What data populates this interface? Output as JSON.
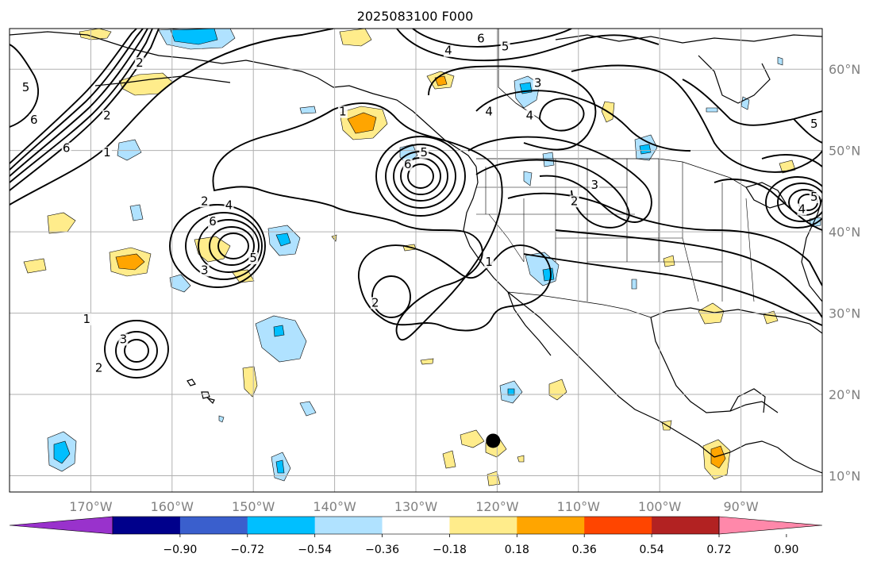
{
  "title": "2025083100 F000",
  "map": {
    "lon_range": [
      -180,
      -80
    ],
    "lat_range": [
      8,
      65
    ],
    "lon_ticks": [
      {
        "value": -170,
        "label": "170°W"
      },
      {
        "value": -160,
        "label": "160°W"
      },
      {
        "value": -150,
        "label": "150°W"
      },
      {
        "value": -140,
        "label": "140°W"
      },
      {
        "value": -130,
        "label": "130°W"
      },
      {
        "value": -120,
        "label": "120°W"
      },
      {
        "value": -110,
        "label": "110°W"
      },
      {
        "value": -100,
        "label": "100°W"
      },
      {
        "value": -90,
        "label": "90°W"
      }
    ],
    "lat_ticks": [
      {
        "value": 10,
        "label": "10°N"
      },
      {
        "value": 20,
        "label": "20°N"
      },
      {
        "value": 30,
        "label": "30°N"
      },
      {
        "value": 40,
        "label": "40°N"
      },
      {
        "value": 50,
        "label": "50°N"
      },
      {
        "value": 60,
        "label": "60°N"
      }
    ],
    "grid": true,
    "marker": {
      "lon": -120.5,
      "lat": 14.3
    },
    "colors": {
      "coast": "#000000",
      "grid": "#b0b0b0",
      "contour": "#000000"
    }
  },
  "colorbar": {
    "colors": [
      "#9932cc",
      "#00008b",
      "#3a5fcd",
      "#00bfff",
      "#b0e2ff",
      "#ffffff",
      "#ffec8b",
      "#ffa500",
      "#ff4500",
      "#b22222",
      "#ff88aa"
    ],
    "tick_labels": [
      "−0.90",
      "−0.72",
      "−0.54",
      "−0.36",
      "−0.18",
      "0.18",
      "0.36",
      "0.54",
      "0.72",
      "0.90"
    ]
  },
  "contour_labels": [
    {
      "text": "5",
      "lon": -178,
      "lat": 57.5
    },
    {
      "text": "6",
      "lon": -177,
      "lat": 53.5
    },
    {
      "text": "2",
      "lon": -164,
      "lat": 60.5
    },
    {
      "text": "2",
      "lon": -168,
      "lat": 54
    },
    {
      "text": "6",
      "lon": -173,
      "lat": 50
    },
    {
      "text": "1",
      "lon": -168,
      "lat": 49.5
    },
    {
      "text": "6",
      "lon": -122,
      "lat": 63.5
    },
    {
      "text": "5",
      "lon": -119,
      "lat": 62.5
    },
    {
      "text": "4",
      "lon": -126,
      "lat": 62
    },
    {
      "text": "3",
      "lon": -115,
      "lat": 58
    },
    {
      "text": "4",
      "lon": -116,
      "lat": 54
    },
    {
      "text": "4",
      "lon": -121,
      "lat": 54.5
    },
    {
      "text": "1",
      "lon": -139,
      "lat": 54.5
    },
    {
      "text": "5",
      "lon": -129,
      "lat": 49.5
    },
    {
      "text": "6",
      "lon": -131,
      "lat": 48
    },
    {
      "text": "2",
      "lon": -156,
      "lat": 43.5
    },
    {
      "text": "4",
      "lon": -153,
      "lat": 43
    },
    {
      "text": "6",
      "lon": -155,
      "lat": 41
    },
    {
      "text": "5",
      "lon": -150,
      "lat": 36.5
    },
    {
      "text": "3",
      "lon": -156,
      "lat": 35
    },
    {
      "text": "1",
      "lon": -170.5,
      "lat": 29
    },
    {
      "text": "3",
      "lon": -166,
      "lat": 26.5
    },
    {
      "text": "2",
      "lon": -169,
      "lat": 23
    },
    {
      "text": "2",
      "lon": -135,
      "lat": 31
    },
    {
      "text": "1",
      "lon": -121,
      "lat": 36
    },
    {
      "text": "3",
      "lon": -108,
      "lat": 45.5
    },
    {
      "text": "2",
      "lon": -110.5,
      "lat": 43.5
    },
    {
      "text": "4",
      "lon": -82.5,
      "lat": 42.5
    },
    {
      "text": "5",
      "lon": -81,
      "lat": 44
    },
    {
      "text": "5",
      "lon": -81,
      "lat": 53
    }
  ]
}
